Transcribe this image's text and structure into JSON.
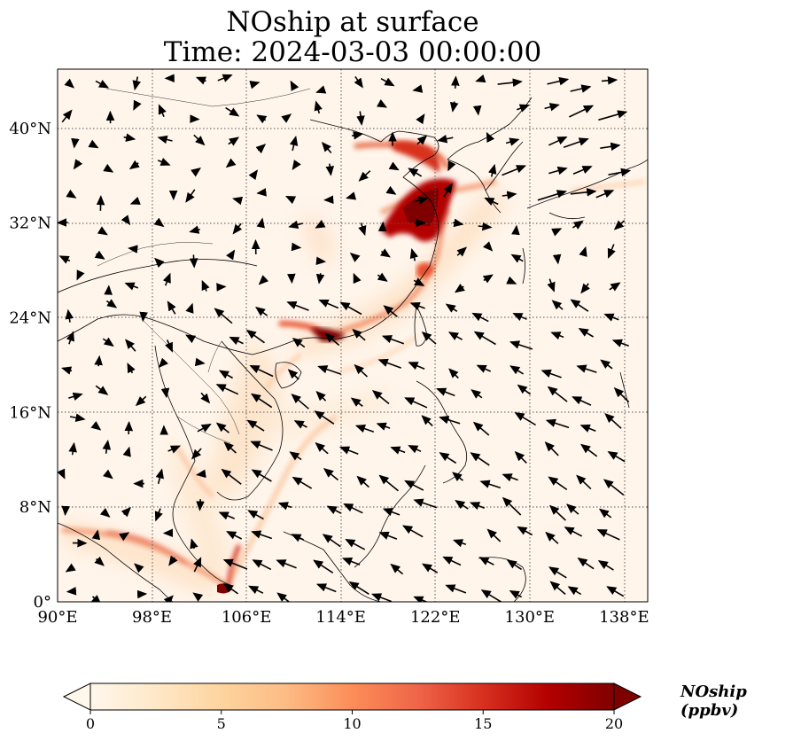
{
  "title": {
    "line1": "NOship at surface",
    "line2": "Time: 2024-03-03 00:00:00"
  },
  "map": {
    "lon_range": [
      90,
      140
    ],
    "lat_range": [
      0,
      45
    ],
    "lon_ticks": [
      {
        "value": 90,
        "label": "90°E"
      },
      {
        "value": 98,
        "label": "98°E"
      },
      {
        "value": 106,
        "label": "106°E"
      },
      {
        "value": 114,
        "label": "114°E"
      },
      {
        "value": 122,
        "label": "122°E"
      },
      {
        "value": 130,
        "label": "130°E"
      },
      {
        "value": 138,
        "label": "138°E"
      }
    ],
    "lat_ticks": [
      {
        "value": 0,
        "label": "0°"
      },
      {
        "value": 8,
        "label": "8°N"
      },
      {
        "value": 16,
        "label": "16°N"
      },
      {
        "value": 24,
        "label": "24°N"
      },
      {
        "value": 32,
        "label": "32°N"
      },
      {
        "value": 40,
        "label": "40°N"
      }
    ],
    "gridlines": true,
    "coastline_color": "#000000",
    "background_color": "#fff5eb"
  },
  "colorbar": {
    "label": "NOship (ppbv)",
    "min": 0,
    "max": 20,
    "ticks": [
      {
        "value": 0,
        "label": "0"
      },
      {
        "value": 5,
        "label": "5"
      },
      {
        "value": 10,
        "label": "10"
      },
      {
        "value": 15,
        "label": "15"
      },
      {
        "value": 20,
        "label": "20"
      }
    ],
    "colormap": "OrRd",
    "colors": [
      "#fff7ec",
      "#fee8c8",
      "#fdd49e",
      "#fdbb84",
      "#fc8d59",
      "#ef6548",
      "#d7301f",
      "#b30000",
      "#7f0000"
    ],
    "extend": "both"
  }
}
